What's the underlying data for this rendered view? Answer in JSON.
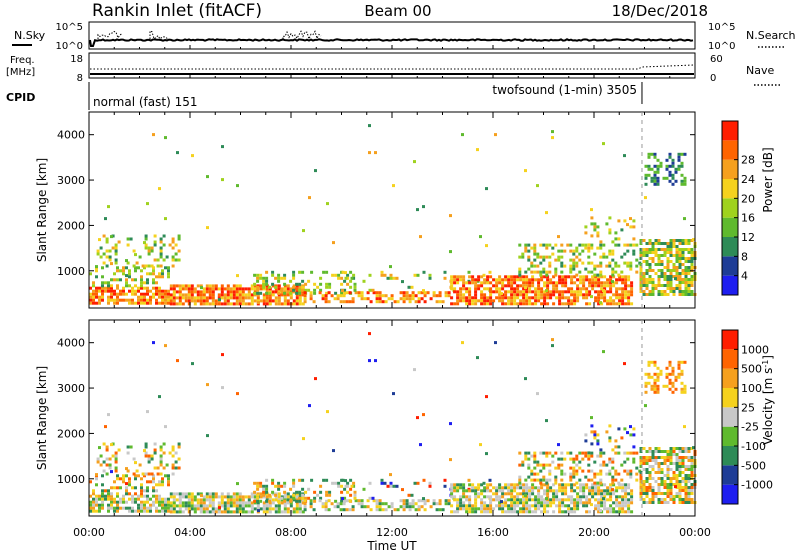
{
  "header": {
    "station": "Rankin Inlet (fitACF)",
    "beam": "Beam 00",
    "date": "18/Dec/2018"
  },
  "nsky_panel": {
    "left_label": "N.Sky",
    "left_ticks": [
      "10^5",
      "10^0"
    ],
    "right_ticks": [
      "10^5",
      "10^0"
    ],
    "right_label": "N.Search"
  },
  "freq_panel": {
    "left_label_1": "Freq.",
    "left_label_2": "[MHz]",
    "left_ticks": [
      "18",
      "8"
    ],
    "right_ticks": [
      "60",
      "0"
    ],
    "right_label": "Nave"
  },
  "cpid_panel": {
    "label": "CPID",
    "mode_1": "normal (fast) 151",
    "mode_2": "twofsound (1-min) 3505",
    "mode_2_start_hour": 21.9
  },
  "colors": {
    "power_scale": [
      "#1e1ef0",
      "#1e3c96",
      "#2e8b57",
      "#5fba2e",
      "#9fd21e",
      "#f5d21e",
      "#f5a01e",
      "#ff6400",
      "#ff1e00"
    ],
    "velocity_scale": [
      "#ff1e00",
      "#ff6400",
      "#f5a01e",
      "#f5d21e",
      "#c8c8c8",
      "#5fba2e",
      "#2e8b57",
      "#1e3c96",
      "#1e1ef0"
    ]
  },
  "chart_data": [
    {
      "type": "heatmap",
      "name": "power",
      "ylabel": "Slant Range [km]",
      "y_ticks": [
        "1000",
        "2000",
        "3000",
        "4000"
      ],
      "ylim": [
        180,
        4500
      ],
      "xlim": [
        0,
        24
      ],
      "colorbar_label": "Power [dB]",
      "colorbar_ticks": [
        "4",
        "8",
        "12",
        "16",
        "20",
        "24",
        "28"
      ],
      "clim": [
        0,
        30
      ]
    },
    {
      "type": "heatmap",
      "name": "velocity",
      "ylabel": "Slant Range [km]",
      "xlabel": "Time UT",
      "x_ticks": [
        "00:00",
        "04:00",
        "08:00",
        "12:00",
        "16:00",
        "20:00",
        "00:00"
      ],
      "y_ticks": [
        "1000",
        "2000",
        "3000",
        "4000"
      ],
      "ylim": [
        180,
        4500
      ],
      "xlim": [
        0,
        24
      ],
      "colorbar_label": "Velocity [m s^-1]",
      "colorbar_ticks": [
        "1000",
        "500",
        "100",
        "25",
        "-25",
        "-100",
        "-500",
        "-1000"
      ],
      "clim": [
        -1000,
        1000
      ]
    }
  ]
}
